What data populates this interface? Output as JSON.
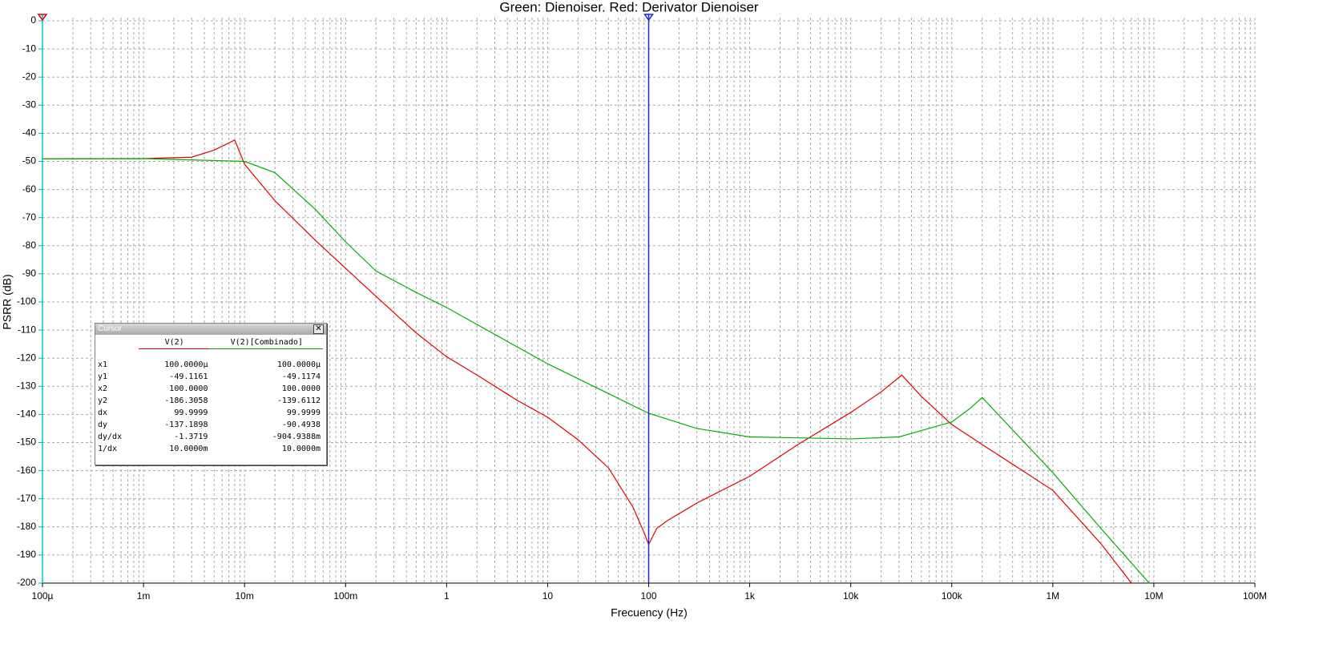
{
  "chart_data": {
    "type": "line",
    "title": "Green: Dienoiser. Red: Derivator Dienoiser",
    "x_label": "Frecuency (Hz)",
    "y_label": "PSRR (dB)",
    "xscale": "log",
    "grid": true,
    "xlim": [
      0.0001,
      100000000
    ],
    "xticks": [
      {
        "value": 0.0001,
        "label": "100µ"
      },
      {
        "value": 0.001,
        "label": "1m"
      },
      {
        "value": 0.01,
        "label": "10m"
      },
      {
        "value": 0.1,
        "label": "100m"
      },
      1,
      10,
      100,
      {
        "value": 1000,
        "label": "1k"
      },
      {
        "value": 10000,
        "label": "10k"
      },
      {
        "value": 100000,
        "label": "100k"
      },
      {
        "value": 1000000,
        "label": "1M"
      },
      {
        "value": 10000000,
        "label": "10M"
      },
      {
        "value": 100000000,
        "label": "100M"
      }
    ],
    "ylim": [
      -200,
      0
    ],
    "yticks": [
      0,
      -10,
      -20,
      -30,
      -40,
      -50,
      -60,
      -70,
      -80,
      -90,
      -100,
      -110,
      -120,
      -130,
      -140,
      -150,
      -160,
      -170,
      -180,
      -190,
      -200
    ],
    "cursor_x": [
      0.0001,
      100
    ],
    "series": [
      {
        "name": "V(2)",
        "color": "#e00000",
        "x": [
          0.0001,
          0.001,
          0.003,
          0.005,
          0.008,
          0.01,
          0.02,
          0.05,
          0.1,
          0.2,
          0.5,
          1,
          2,
          5,
          10,
          20,
          40,
          70,
          90,
          100,
          120,
          150,
          300,
          1000,
          3000,
          10000,
          20000,
          32000,
          50000,
          100000,
          200000,
          1000000,
          3000000,
          6000000
        ],
        "values": [
          -49.1,
          -49,
          -48.5,
          -46,
          -42.4,
          -51,
          -64,
          -78,
          -88,
          -98,
          -111,
          -119.5,
          -126,
          -135,
          -141,
          -149,
          -159,
          -173,
          -182,
          -186.3,
          -180.6,
          -178,
          -171.5,
          -162,
          -150.7,
          -139.3,
          -132,
          -126,
          -133.6,
          -143.6,
          -150.7,
          -167,
          -186,
          -200
        ]
      },
      {
        "name": "V(2)[Combinado]",
        "color": "#00b000",
        "x": [
          0.0001,
          0.001,
          0.01,
          0.02,
          0.05,
          0.1,
          0.2,
          0.5,
          1,
          10,
          100,
          300,
          1000,
          10000,
          30000,
          100000,
          150000,
          200000,
          300000,
          1000000,
          3000000,
          9000000
        ],
        "values": [
          -49.1,
          -49,
          -50,
          -54,
          -67,
          -78.6,
          -89,
          -96.6,
          -102,
          -122,
          -139.6,
          -145,
          -148,
          -148.7,
          -148,
          -142.7,
          -138,
          -134,
          -140.7,
          -160.7,
          -180.6,
          -200
        ]
      }
    ]
  },
  "cursor_window": {
    "title": "Cursor",
    "columns": [
      "V(2)",
      "V(2)[Combinado]"
    ],
    "rows": [
      [
        "x1",
        "100.0000µ",
        "100.0000µ"
      ],
      [
        "y1",
        "-49.1161",
        "-49.1174"
      ],
      [
        "x2",
        "100.0000",
        "100.0000"
      ],
      [
        "y2",
        "-186.3058",
        "-139.6112"
      ],
      [
        "dx",
        "99.9999",
        "99.9999"
      ],
      [
        "dy",
        "-137.1898",
        "-90.4938"
      ],
      [
        "dy/dx",
        "-1.3719",
        "-904.9388m"
      ],
      [
        "1/dx",
        "10.0000m",
        "10.0000m"
      ]
    ]
  }
}
